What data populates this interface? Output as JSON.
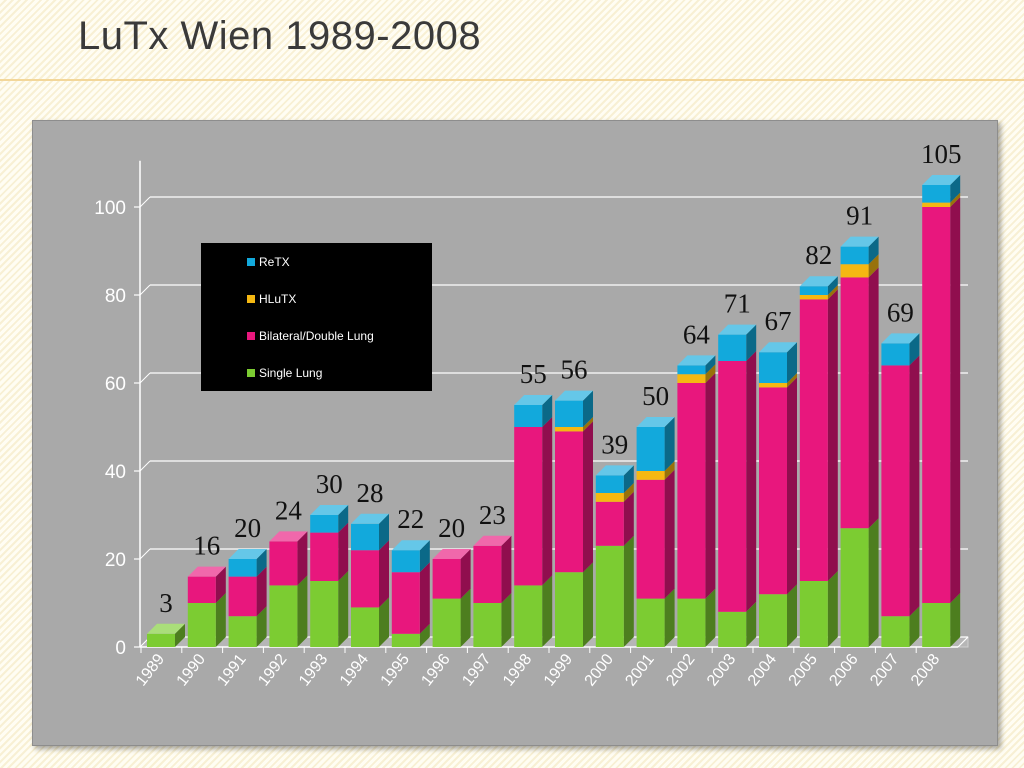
{
  "slide": {
    "title": "LuTx Wien 1989-2008"
  },
  "chart_data": {
    "type": "bar",
    "stacked": true,
    "three_d": true,
    "title": "",
    "xlabel": "",
    "ylabel": "",
    "categories": [
      "1989",
      "1990",
      "1991",
      "1992",
      "1993",
      "1994",
      "1995",
      "1996",
      "1997",
      "1998",
      "1999",
      "2000",
      "2001",
      "2002",
      "2003",
      "2004",
      "2005",
      "2006",
      "2007",
      "2008"
    ],
    "series": [
      {
        "name": "Single Lung",
        "color": "#7ccc32",
        "values": [
          3,
          10,
          7,
          14,
          15,
          9,
          3,
          11,
          10,
          14,
          17,
          23,
          11,
          11,
          8,
          12,
          15,
          27,
          7,
          10
        ]
      },
      {
        "name": "Bilateral/Double Lung",
        "color": "#e8177d",
        "values": [
          0,
          6,
          9,
          10,
          11,
          13,
          14,
          9,
          13,
          36,
          32,
          10,
          27,
          49,
          57,
          47,
          64,
          57,
          57,
          90
        ]
      },
      {
        "name": "HLuTX",
        "color": "#f5b812",
        "values": [
          0,
          0,
          0,
          0,
          0,
          0,
          0,
          0,
          0,
          0,
          1,
          2,
          2,
          2,
          0,
          1,
          1,
          3,
          0,
          1
        ]
      },
      {
        "name": "ReTX",
        "color": "#12a9dc",
        "values": [
          0,
          0,
          4,
          0,
          4,
          6,
          5,
          0,
          0,
          5,
          6,
          4,
          10,
          2,
          6,
          7,
          2,
          4,
          5,
          4
        ]
      }
    ],
    "totals": [
      3,
      16,
      20,
      24,
      30,
      28,
      22,
      20,
      23,
      55,
      56,
      39,
      50,
      64,
      71,
      67,
      82,
      91,
      69,
      105
    ],
    "ylim": [
      0,
      100
    ],
    "yticks": [
      0,
      20,
      40,
      60,
      80,
      100
    ],
    "legend_order": [
      "ReTX",
      "HLuTX",
      "Bilateral/Double Lung",
      "Single Lung"
    ],
    "legend_position": "upper-left inside plot",
    "grid": true
  }
}
